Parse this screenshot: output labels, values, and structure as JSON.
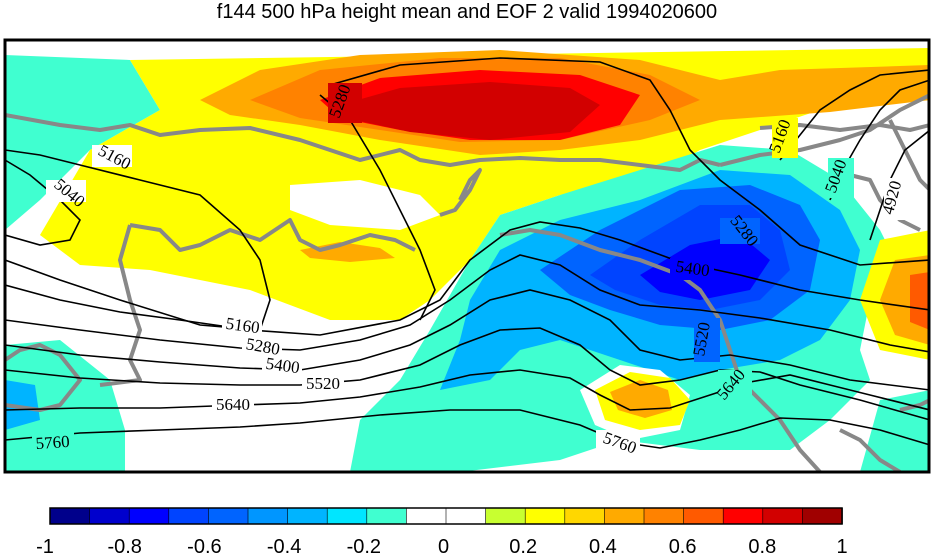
{
  "title": "f144 500 hPa height mean and EOF 2 valid 1994020600",
  "contour_labels": [
    "5280",
    "5160",
    "5040",
    "5160",
    "5280",
    "5400",
    "5520",
    "5640",
    "5760",
    "5280",
    "5400",
    "5520",
    "5640",
    "5760",
    "5160",
    "5040",
    "4920"
  ],
  "colorbar": {
    "colors": [
      "#00008b",
      "#0000cd",
      "#0000ff",
      "#0044ff",
      "#0064ff",
      "#0096ff",
      "#00b4ff",
      "#00e6ff",
      "#40ffd0",
      "#ffffff",
      "#ffffff",
      "#c8ff30",
      "#ffff00",
      "#ffd700",
      "#ffaa00",
      "#ff8200",
      "#ff5a00",
      "#ff0000",
      "#d20000",
      "#a00000"
    ],
    "tick_labels": [
      "-1",
      "-0.8",
      "-0.6",
      "-0.4",
      "-0.2",
      "0",
      "0.2",
      "0.4",
      "0.6",
      "0.8",
      "1"
    ]
  },
  "colors": {
    "coastline": "#888888",
    "contour": "#000000",
    "frame": "#000000"
  }
}
